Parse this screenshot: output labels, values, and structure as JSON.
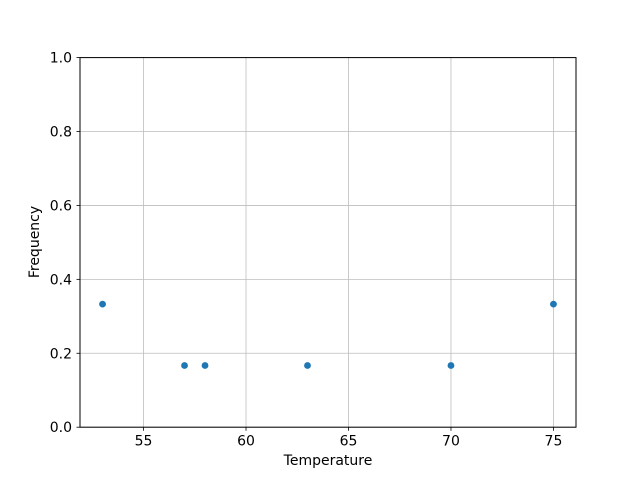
{
  "chart_data": {
    "type": "scatter",
    "title": "",
    "xlabel": "Temperature",
    "ylabel": "Frequency",
    "x": [
      53,
      57,
      58,
      63,
      70,
      75
    ],
    "y": [
      0.333,
      0.167,
      0.167,
      0.167,
      0.167,
      0.333
    ],
    "xlim": [
      51.9,
      76.1
    ],
    "ylim": [
      0.0,
      1.0
    ],
    "xticks": {
      "values": [
        55,
        60,
        65,
        70,
        75
      ],
      "labels": [
        "55",
        "60",
        "65",
        "70",
        "75"
      ]
    },
    "yticks": {
      "values": [
        0.0,
        0.2,
        0.4,
        0.6,
        0.8,
        1.0
      ],
      "labels": [
        "0.0",
        "0.2",
        "0.4",
        "0.6",
        "0.8",
        "1.0"
      ]
    },
    "grid": true,
    "legend_position": "none",
    "marker_color": "#1f77b4",
    "marker_radius": 3.4,
    "grid_color": "#bdbdbd",
    "spine_color": "#000000",
    "background": "#ffffff"
  }
}
